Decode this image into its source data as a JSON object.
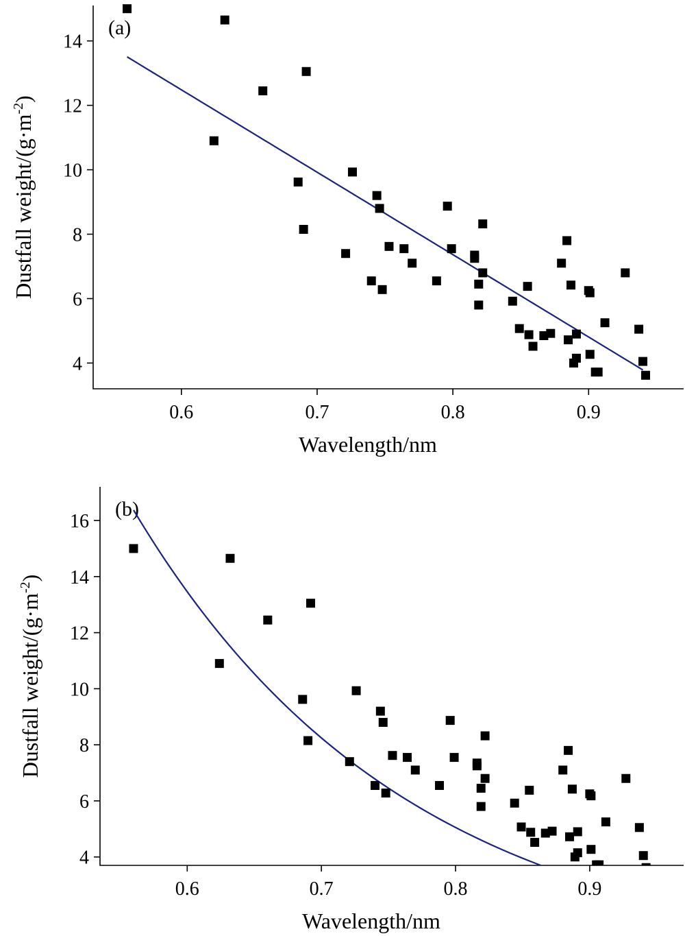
{
  "colors": {
    "point": "#000000",
    "fit_line": "#1a237e"
  },
  "chart_data": [
    {
      "type": "scatter",
      "panel_label": "(a)",
      "xlabel": "Wavelength/nm",
      "ylabel_main": "Dustfall weight/(g·m",
      "ylabel_sup": "-2",
      "ylabel_close": ")",
      "xlim": [
        0.535,
        0.97
      ],
      "ylim": [
        3.2,
        15.1
      ],
      "x_ticks": [
        0.6,
        0.7,
        0.8,
        0.9
      ],
      "x_tick_labels": [
        "0.6",
        "0.7",
        "0.8",
        "0.9"
      ],
      "y_ticks": [
        4,
        6,
        8,
        10,
        12,
        14
      ],
      "y_tick_labels": [
        "4",
        "6",
        "8",
        "10",
        "12",
        "14"
      ],
      "grid": false,
      "fit": {
        "kind": "linear",
        "x_range": [
          0.56,
          0.94
        ],
        "slope": -25.58,
        "intercept": 27.83
      },
      "points": [
        [
          0.56,
          15.0
        ],
        [
          0.632,
          14.65
        ],
        [
          0.66,
          12.45
        ],
        [
          0.692,
          13.05
        ],
        [
          0.624,
          10.9
        ],
        [
          0.686,
          9.62
        ],
        [
          0.69,
          8.15
        ],
        [
          0.726,
          9.93
        ],
        [
          0.744,
          9.2
        ],
        [
          0.746,
          8.8
        ],
        [
          0.721,
          7.4
        ],
        [
          0.753,
          7.62
        ],
        [
          0.764,
          7.55
        ],
        [
          0.77,
          7.1
        ],
        [
          0.74,
          6.55
        ],
        [
          0.748,
          6.28
        ],
        [
          0.788,
          6.55
        ],
        [
          0.796,
          8.87
        ],
        [
          0.799,
          7.55
        ],
        [
          0.816,
          7.35
        ],
        [
          0.816,
          7.25
        ],
        [
          0.822,
          8.32
        ],
        [
          0.822,
          6.8
        ],
        [
          0.819,
          6.45
        ],
        [
          0.819,
          5.8
        ],
        [
          0.844,
          5.92
        ],
        [
          0.849,
          5.07
        ],
        [
          0.855,
          6.38
        ],
        [
          0.856,
          4.88
        ],
        [
          0.859,
          4.52
        ],
        [
          0.867,
          4.85
        ],
        [
          0.872,
          4.92
        ],
        [
          0.88,
          7.1
        ],
        [
          0.884,
          7.8
        ],
        [
          0.887,
          6.42
        ],
        [
          0.885,
          4.72
        ],
        [
          0.889,
          4.0
        ],
        [
          0.891,
          4.9
        ],
        [
          0.891,
          4.15
        ],
        [
          0.9,
          6.25
        ],
        [
          0.901,
          6.18
        ],
        [
          0.901,
          4.27
        ],
        [
          0.905,
          3.72
        ],
        [
          0.907,
          3.72
        ],
        [
          0.912,
          5.25
        ],
        [
          0.927,
          6.8
        ],
        [
          0.937,
          5.05
        ],
        [
          0.94,
          4.05
        ],
        [
          0.942,
          3.62
        ]
      ]
    },
    {
      "type": "scatter",
      "panel_label": "(b)",
      "xlabel": "Wavelength/nm",
      "ylabel_main": "Dustfall weight/(g·m",
      "ylabel_sup": "-2",
      "ylabel_close": ")",
      "xlim": [
        0.535,
        0.97
      ],
      "ylim": [
        3.7,
        17.2
      ],
      "x_ticks": [
        0.6,
        0.7,
        0.8,
        0.9
      ],
      "x_tick_labels": [
        "0.6",
        "0.7",
        "0.8",
        "0.9"
      ],
      "y_ticks": [
        4,
        6,
        8,
        10,
        12,
        14,
        16
      ],
      "y_tick_labels": [
        "4",
        "6",
        "8",
        "10",
        "12",
        "14",
        "16"
      ],
      "grid": false,
      "fit": {
        "kind": "exponential",
        "x_range": [
          0.56,
          0.94
        ],
        "a": 254.6,
        "b": -4.9
      },
      "points": [
        [
          0.56,
          15.0
        ],
        [
          0.632,
          14.65
        ],
        [
          0.66,
          12.45
        ],
        [
          0.692,
          13.05
        ],
        [
          0.624,
          10.9
        ],
        [
          0.686,
          9.62
        ],
        [
          0.69,
          8.15
        ],
        [
          0.726,
          9.93
        ],
        [
          0.744,
          9.2
        ],
        [
          0.746,
          8.8
        ],
        [
          0.721,
          7.4
        ],
        [
          0.753,
          7.62
        ],
        [
          0.764,
          7.55
        ],
        [
          0.77,
          7.1
        ],
        [
          0.74,
          6.55
        ],
        [
          0.748,
          6.28
        ],
        [
          0.788,
          6.55
        ],
        [
          0.796,
          8.87
        ],
        [
          0.799,
          7.55
        ],
        [
          0.816,
          7.35
        ],
        [
          0.816,
          7.25
        ],
        [
          0.822,
          8.32
        ],
        [
          0.822,
          6.8
        ],
        [
          0.819,
          6.45
        ],
        [
          0.819,
          5.8
        ],
        [
          0.844,
          5.92
        ],
        [
          0.849,
          5.07
        ],
        [
          0.855,
          6.38
        ],
        [
          0.856,
          4.88
        ],
        [
          0.859,
          4.52
        ],
        [
          0.867,
          4.85
        ],
        [
          0.872,
          4.92
        ],
        [
          0.88,
          7.1
        ],
        [
          0.884,
          7.8
        ],
        [
          0.887,
          6.42
        ],
        [
          0.885,
          4.72
        ],
        [
          0.889,
          4.0
        ],
        [
          0.891,
          4.9
        ],
        [
          0.891,
          4.15
        ],
        [
          0.9,
          6.25
        ],
        [
          0.901,
          6.18
        ],
        [
          0.901,
          4.27
        ],
        [
          0.905,
          3.72
        ],
        [
          0.907,
          3.72
        ],
        [
          0.912,
          5.25
        ],
        [
          0.927,
          6.8
        ],
        [
          0.937,
          5.05
        ],
        [
          0.94,
          4.05
        ],
        [
          0.942,
          3.62
        ]
      ]
    }
  ]
}
